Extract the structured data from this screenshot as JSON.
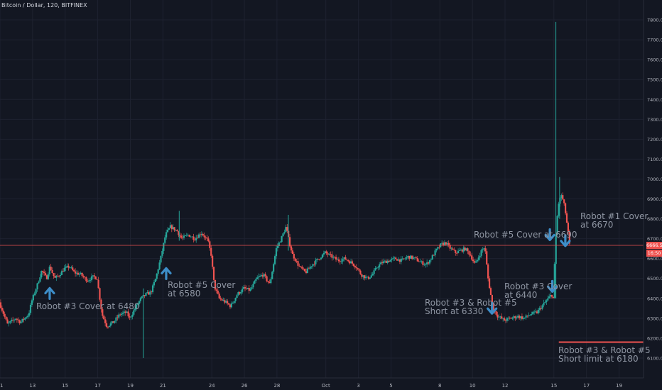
{
  "header": {
    "symbol": "Bitcoin / Dollar, 120, BITFINEX"
  },
  "price_tags": {
    "last": "6666.5",
    "countdown": "16:50"
  },
  "colors": {
    "background": "#131722",
    "up": "#26a69a",
    "down": "#ef5350",
    "price_line": "#ef5350",
    "arrow": "#3d8ec9",
    "annotation": "#8f96a3",
    "grid": "#1e2230",
    "axis_text": "#b2b5be"
  },
  "annotations": [
    {
      "id": "robot3-cover-6480",
      "lines": [
        "Robot #3 Cover at 6480"
      ]
    },
    {
      "id": "robot5-cover-6580",
      "lines": [
        "Robot #5 Cover",
        "at 6580"
      ]
    },
    {
      "id": "robot5-cover-6690",
      "lines": [
        "Robot #5 Cover at 6690"
      ]
    },
    {
      "id": "robot1-cover-6670",
      "lines": [
        "Robot #1 Cover",
        "at 6670"
      ]
    },
    {
      "id": "robot3-robot5-short-6330",
      "lines": [
        "Robot #3 & Robot #5",
        "Short at 6330"
      ]
    },
    {
      "id": "robot3-cover-6440",
      "lines": [
        "Robot #3 Cover",
        "at 6440"
      ]
    },
    {
      "id": "robot3-robot5-short-limit-6180",
      "lines": [
        "Robot #3 & Robot #5",
        "Short limit at 6180"
      ]
    }
  ],
  "chart_data": {
    "type": "candlestick",
    "title": "Bitcoin / Dollar, 120, BITFINEX",
    "ylim": [
      6000,
      7900
    ],
    "y_ticks": [
      6100,
      6200,
      6300,
      6400,
      6500,
      6600,
      6700,
      6800,
      6900,
      7000,
      7100,
      7200,
      7300,
      7400,
      7500,
      7600,
      7700,
      7800
    ],
    "x_ticks": [
      "11",
      "13",
      "15",
      "17",
      "19",
      "21",
      "24",
      "26",
      "28",
      "Oct",
      "3",
      "5",
      "8",
      "10",
      "12",
      "15",
      "17",
      "19"
    ],
    "x_tick_days": [
      11,
      13,
      15,
      17,
      19,
      21,
      24,
      26,
      28,
      31,
      33,
      35,
      38,
      40,
      42,
      45,
      47,
      49
    ],
    "x_range_days": [
      11,
      50.5
    ],
    "price_path": [
      [
        11.0,
        6380
      ],
      [
        11.5,
        6270
      ],
      [
        12.0,
        6300
      ],
      [
        12.3,
        6280
      ],
      [
        12.8,
        6320
      ],
      [
        13.0,
        6390
      ],
      [
        13.3,
        6460
      ],
      [
        13.6,
        6540
      ],
      [
        13.9,
        6500
      ],
      [
        14.1,
        6560
      ],
      [
        14.4,
        6500
      ],
      [
        14.7,
        6520
      ],
      [
        15.0,
        6550
      ],
      [
        15.3,
        6560
      ],
      [
        15.6,
        6530
      ],
      [
        16.0,
        6520
      ],
      [
        16.4,
        6490
      ],
      [
        16.8,
        6510
      ],
      [
        17.0,
        6500
      ],
      [
        17.3,
        6320
      ],
      [
        17.6,
        6260
      ],
      [
        18.0,
        6280
      ],
      [
        18.4,
        6320
      ],
      [
        18.8,
        6330
      ],
      [
        19.0,
        6300
      ],
      [
        19.4,
        6360
      ],
      [
        19.7,
        6400
      ],
      [
        20.0,
        6420
      ],
      [
        20.3,
        6430
      ],
      [
        20.6,
        6500
      ],
      [
        20.9,
        6600
      ],
      [
        21.2,
        6720
      ],
      [
        21.5,
        6760
      ],
      [
        21.9,
        6740
      ],
      [
        22.2,
        6700
      ],
      [
        22.6,
        6720
      ],
      [
        23.0,
        6700
      ],
      [
        23.4,
        6730
      ],
      [
        23.8,
        6690
      ],
      [
        24.0,
        6620
      ],
      [
        24.2,
        6460
      ],
      [
        24.5,
        6400
      ],
      [
        24.9,
        6380
      ],
      [
        25.2,
        6360
      ],
      [
        25.6,
        6420
      ],
      [
        26.0,
        6450
      ],
      [
        26.4,
        6440
      ],
      [
        26.8,
        6500
      ],
      [
        27.2,
        6520
      ],
      [
        27.6,
        6470
      ],
      [
        28.0,
        6650
      ],
      [
        28.3,
        6700
      ],
      [
        28.6,
        6760
      ],
      [
        28.8,
        6680
      ],
      [
        29.0,
        6620
      ],
      [
        29.4,
        6560
      ],
      [
        29.8,
        6530
      ],
      [
        30.2,
        6570
      ],
      [
        30.6,
        6600
      ],
      [
        31.0,
        6630
      ],
      [
        31.4,
        6610
      ],
      [
        31.8,
        6590
      ],
      [
        32.2,
        6600
      ],
      [
        32.6,
        6580
      ],
      [
        32.9,
        6560
      ],
      [
        33.2,
        6520
      ],
      [
        33.6,
        6500
      ],
      [
        33.9,
        6520
      ],
      [
        34.2,
        6560
      ],
      [
        34.5,
        6580
      ],
      [
        34.9,
        6590
      ],
      [
        35.3,
        6600
      ],
      [
        35.7,
        6590
      ],
      [
        36.1,
        6610
      ],
      [
        36.5,
        6600
      ],
      [
        36.9,
        6580
      ],
      [
        37.2,
        6570
      ],
      [
        37.5,
        6600
      ],
      [
        37.8,
        6640
      ],
      [
        38.1,
        6670
      ],
      [
        38.4,
        6680
      ],
      [
        38.7,
        6650
      ],
      [
        39.0,
        6630
      ],
      [
        39.3,
        6640
      ],
      [
        39.6,
        6650
      ],
      [
        39.9,
        6620
      ],
      [
        40.2,
        6570
      ],
      [
        40.6,
        6640
      ],
      [
        40.8,
        6660
      ],
      [
        41.0,
        6500
      ],
      [
        41.3,
        6350
      ],
      [
        41.6,
        6310
      ],
      [
        42.0,
        6290
      ],
      [
        42.4,
        6300
      ],
      [
        42.8,
        6310
      ],
      [
        43.2,
        6300
      ],
      [
        43.6,
        6320
      ],
      [
        44.0,
        6330
      ],
      [
        44.3,
        6360
      ],
      [
        44.6,
        6390
      ],
      [
        44.9,
        6420
      ],
      [
        45.0,
        6400
      ],
      [
        45.15,
        6700
      ],
      [
        45.3,
        6870
      ],
      [
        45.5,
        6920
      ],
      [
        45.7,
        6860
      ],
      [
        45.9,
        6740
      ],
      [
        46.0,
        6670
      ]
    ],
    "spikes": [
      {
        "day": 45.12,
        "high": 7790,
        "low": 6400
      },
      {
        "day": 45.35,
        "high": 7010,
        "low": 6800
      },
      {
        "day": 22.0,
        "high": 6840,
        "low": 6690
      },
      {
        "day": 28.7,
        "high": 6820,
        "low": 6640
      },
      {
        "day": 19.8,
        "high": 6450,
        "low": 6100
      }
    ],
    "last_price": 6666.5,
    "short_limit": 6180,
    "short_limit_days": [
      45.3,
      50.6
    ],
    "arrows": [
      {
        "day": 14.05,
        "price": 6430,
        "dir": "up"
      },
      {
        "day": 21.2,
        "price": 6530,
        "dir": "up"
      },
      {
        "day": 41.2,
        "price": 6345,
        "dir": "down"
      },
      {
        "day": 44.9,
        "price": 6455,
        "dir": "down"
      },
      {
        "day": 44.75,
        "price": 6715,
        "dir": "down"
      },
      {
        "day": 45.7,
        "price": 6685,
        "dir": "down"
      }
    ]
  }
}
